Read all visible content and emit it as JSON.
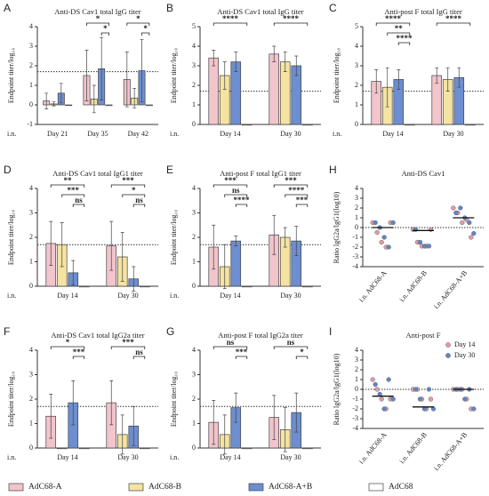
{
  "chart_data": [
    {
      "type": "bar",
      "panel": "A",
      "title": "Anti-DS Cav1 total IgG titer",
      "ylabel": "Endpoint titer/log₁₀",
      "x_note": "i.n.",
      "categories": [
        "Day 21",
        "Day 35",
        "Day 42"
      ],
      "ylim": [
        -1,
        4
      ],
      "yticks": [
        -1,
        0,
        1,
        2,
        3,
        4
      ],
      "threshold": 1.7,
      "legend": "bottom",
      "series": [
        {
          "name": "AdC68-A",
          "color": "#f2c4cc",
          "values": [
            0.2,
            1.5,
            1.3
          ],
          "errors": [
            0.4,
            1.3,
            1.4
          ]
        },
        {
          "name": "AdC68-B",
          "color": "#f5e3a1",
          "values": [
            0.05,
            0.3,
            0.35
          ],
          "errors": [
            0.1,
            0.7,
            0.5
          ]
        },
        {
          "name": "AdC68-A+B",
          "color": "#6d8ed0",
          "values": [
            0.6,
            1.85,
            1.75
          ],
          "errors": [
            0.5,
            1.6,
            1.6
          ]
        },
        {
          "name": "AdC68",
          "color": "#ffffff",
          "values": [
            0,
            0,
            0
          ],
          "errors": [
            0,
            0,
            0
          ]
        }
      ],
      "brackets": [
        {
          "label": "*"
        },
        {
          "label": "*"
        },
        {
          "label": "*"
        },
        {
          "label": "*"
        }
      ]
    },
    {
      "type": "bar",
      "panel": "B",
      "title": "Anti-DS Cav1 total IgG titer",
      "ylabel": "Endpoint titer/log₁₀",
      "x_note": "i.n.",
      "categories": [
        "Day 14",
        "Day 30"
      ],
      "ylim": [
        0,
        5
      ],
      "yticks": [
        0,
        1,
        2,
        3,
        4,
        5
      ],
      "threshold": 1.7,
      "series": [
        {
          "color": "#f2c4cc",
          "values": [
            3.4,
            3.6
          ],
          "errors": [
            0.4,
            0.4
          ]
        },
        {
          "color": "#f5e3a1",
          "values": [
            2.5,
            3.2
          ],
          "errors": [
            0.7,
            0.5
          ]
        },
        {
          "color": "#6d8ed0",
          "values": [
            3.2,
            3.0
          ],
          "errors": [
            0.5,
            0.5
          ]
        },
        {
          "color": "#ffffff",
          "values": [
            0,
            0
          ],
          "errors": [
            0,
            0
          ]
        }
      ],
      "brackets": [
        {
          "label": "****"
        },
        {
          "label": "****"
        }
      ]
    },
    {
      "type": "bar",
      "panel": "C",
      "title": "Anti-post F total IgG titer",
      "ylabel": "Endpoint titer/log₁₀",
      "x_note": "i.n.",
      "categories": [
        "Day 14",
        "Day 30"
      ],
      "ylim": [
        0,
        5
      ],
      "yticks": [
        0,
        1,
        2,
        3,
        4,
        5
      ],
      "threshold": 1.7,
      "series": [
        {
          "color": "#f2c4cc",
          "values": [
            2.2,
            2.5
          ],
          "errors": [
            0.6,
            0.4
          ]
        },
        {
          "color": "#f5e3a1",
          "values": [
            1.9,
            2.3
          ],
          "errors": [
            1.0,
            0.6
          ]
        },
        {
          "color": "#6d8ed0",
          "values": [
            2.3,
            2.4
          ],
          "errors": [
            0.5,
            0.5
          ]
        },
        {
          "color": "#ffffff",
          "values": [
            0,
            0
          ],
          "errors": [
            0,
            0
          ]
        }
      ],
      "brackets": [
        {
          "label": "****"
        },
        {
          "label": "**"
        },
        {
          "label": "****"
        },
        {
          "label": "****"
        }
      ]
    },
    {
      "type": "bar",
      "panel": "D",
      "title": "Anti-DS Cav1 total IgG1 titer",
      "ylabel": "Endpoint titer/log₁₀",
      "x_note": "i.n.",
      "categories": [
        "Day 14",
        "Day 30"
      ],
      "ylim": [
        0,
        4
      ],
      "yticks": [
        0,
        1,
        2,
        3,
        4
      ],
      "threshold": 1.7,
      "series": [
        {
          "color": "#f2c4cc",
          "values": [
            1.75,
            1.65
          ],
          "errors": [
            0.9,
            1.0
          ]
        },
        {
          "color": "#f5e3a1",
          "values": [
            1.7,
            1.2
          ],
          "errors": [
            0.9,
            1.0
          ]
        },
        {
          "color": "#6d8ed0",
          "values": [
            0.55,
            0.3
          ],
          "errors": [
            0.5,
            0.5
          ]
        },
        {
          "color": "#ffffff",
          "values": [
            0,
            0
          ],
          "errors": [
            0,
            0
          ]
        }
      ],
      "brackets": [
        {
          "label": "**"
        },
        {
          "label": "***"
        },
        {
          "label": "ns"
        },
        {
          "label": "***"
        },
        {
          "label": "*"
        },
        {
          "label": "ns"
        }
      ]
    },
    {
      "type": "bar",
      "panel": "E",
      "title": "Anti-post F total IgG1 titer",
      "ylabel": "Endpoint titer/log₁₀",
      "x_note": "i.n.",
      "categories": [
        "Day 14",
        "Day 30"
      ],
      "ylim": [
        0,
        4
      ],
      "yticks": [
        0,
        1,
        2,
        3,
        4
      ],
      "threshold": 1.7,
      "series": [
        {
          "color": "#f2c4cc",
          "values": [
            1.6,
            2.1
          ],
          "errors": [
            0.9,
            0.8
          ]
        },
        {
          "color": "#f5e3a1",
          "values": [
            0.8,
            2.0
          ],
          "errors": [
            0.9,
            0.4
          ]
        },
        {
          "color": "#6d8ed0",
          "values": [
            1.85,
            1.85
          ],
          "errors": [
            0.2,
            0.6
          ]
        },
        {
          "color": "#ffffff",
          "values": [
            0,
            0
          ],
          "errors": [
            0,
            0
          ]
        }
      ],
      "brackets": [
        {
          "label": "***"
        },
        {
          "label": "ns"
        },
        {
          "label": "****"
        },
        {
          "label": "***"
        },
        {
          "label": "****"
        },
        {
          "label": "***"
        }
      ]
    },
    {
      "type": "scatter",
      "panel": "H",
      "title": "Anti-DS Cav1",
      "ylabel": "Ratio lgG2a/lgG1(log10)",
      "categories": [
        "i.n. AdC68-A",
        "i.n. AdC68-B",
        "i.n. AdC68-A+B"
      ],
      "ylim": [
        -4,
        4
      ],
      "yticks": [
        -4,
        -3,
        -2,
        -1,
        0,
        1,
        2,
        3,
        4
      ],
      "threshold": 0,
      "means": [
        0,
        -0.3,
        1.0
      ],
      "series": [
        {
          "color": "#e79aa6",
          "values": [
            [
              0.5,
              -0.5,
              -1.5,
              -2.0,
              0.5
            ],
            [
              -0.2,
              -1.5,
              -1.9,
              -1.9,
              -0.2
            ],
            [
              2.0,
              1.5,
              0.5,
              0.8,
              -1.0
            ]
          ]
        },
        {
          "color": "#5d86c9",
          "values": [
            [
              0.5,
              0,
              -1.0,
              -2.0,
              0.5
            ],
            [
              -0.2,
              -1.5,
              -1.9,
              -1.9
            ],
            [
              1.5,
              2.0,
              1.0,
              0.5,
              -0.6
            ]
          ]
        }
      ]
    },
    {
      "type": "bar",
      "panel": "F",
      "title": "Anti-DS Cav1 total IgG2a titer",
      "ylabel": "Endpoint titer/log₁₀",
      "x_note": "i.n.",
      "categories": [
        "Day 14",
        "Day 30"
      ],
      "ylim": [
        0,
        4
      ],
      "yticks": [
        0,
        1,
        2,
        3,
        4
      ],
      "threshold": 1.7,
      "series": [
        {
          "color": "#f2c4cc",
          "values": [
            1.3,
            1.85
          ],
          "errors": [
            0.9,
            0.9
          ]
        },
        {
          "color": "#f5e3a1",
          "values": [
            0.0,
            0.55
          ],
          "errors": [
            0,
            0.8
          ]
        },
        {
          "color": "#6d8ed0",
          "values": [
            1.85,
            0.9
          ],
          "errors": [
            0.9,
            0.8
          ]
        },
        {
          "color": "#ffffff",
          "values": [
            0,
            0
          ],
          "errors": [
            0,
            0
          ]
        }
      ],
      "brackets": [
        {
          "label": "*"
        },
        {
          "label": "***"
        },
        {
          "label": "***"
        },
        {
          "label": "ns"
        }
      ]
    },
    {
      "type": "bar",
      "panel": "G",
      "title": "Anti-post F total IgG2a titer",
      "ylabel": "Endpoint titer/log₁₀",
      "x_note": "i.n.",
      "categories": [
        "Day 14",
        "Day 30"
      ],
      "ylim": [
        0,
        4
      ],
      "yticks": [
        0,
        1,
        2,
        3,
        4
      ],
      "threshold": 1.7,
      "series": [
        {
          "color": "#f2c4cc",
          "values": [
            1.05,
            1.25
          ],
          "errors": [
            0.9,
            0.9
          ]
        },
        {
          "color": "#f5e3a1",
          "values": [
            0.55,
            0.75
          ],
          "errors": [
            0.8,
            0.9
          ]
        },
        {
          "color": "#6d8ed0",
          "values": [
            1.65,
            1.45
          ],
          "errors": [
            0.6,
            0.8
          ]
        },
        {
          "color": "#ffffff",
          "values": [
            0,
            0
          ],
          "errors": [
            0,
            0
          ]
        }
      ],
      "brackets": [
        {
          "label": "ns"
        },
        {
          "label": "***"
        },
        {
          "label": "ns"
        },
        {
          "label": "*"
        }
      ]
    },
    {
      "type": "scatter",
      "panel": "I",
      "title": "Anti-post F",
      "ylabel": "Ratio lgG2a/lgG1(log10)",
      "legend": "upper right",
      "categories": [
        "i.n. AdC68-A",
        "i.n. AdC68-B",
        "i.n. AdC68-A+B"
      ],
      "ylim": [
        -4,
        4
      ],
      "yticks": [
        -4,
        -3,
        -2,
        -1,
        0,
        1,
        2,
        3,
        4
      ],
      "threshold": 0,
      "means": [
        -0.7,
        -1.8,
        0
      ],
      "series": [
        {
          "name": "Day 14",
          "color": "#e79aa6",
          "values": [
            [
              1.0,
              0,
              -1,
              -2,
              -1
            ],
            [
              0,
              0,
              -1,
              -2,
              -1
            ],
            [
              0,
              0,
              0,
              -1,
              -2
            ]
          ]
        },
        {
          "name": "Day 30",
          "color": "#5d86c9",
          "values": [
            [
              0.5,
              -0.5,
              -2,
              1,
              -1
            ],
            [
              0,
              -1,
              -2,
              0,
              -2
            ],
            [
              0,
              0,
              -1,
              0,
              -2
            ]
          ]
        }
      ]
    }
  ]
}
